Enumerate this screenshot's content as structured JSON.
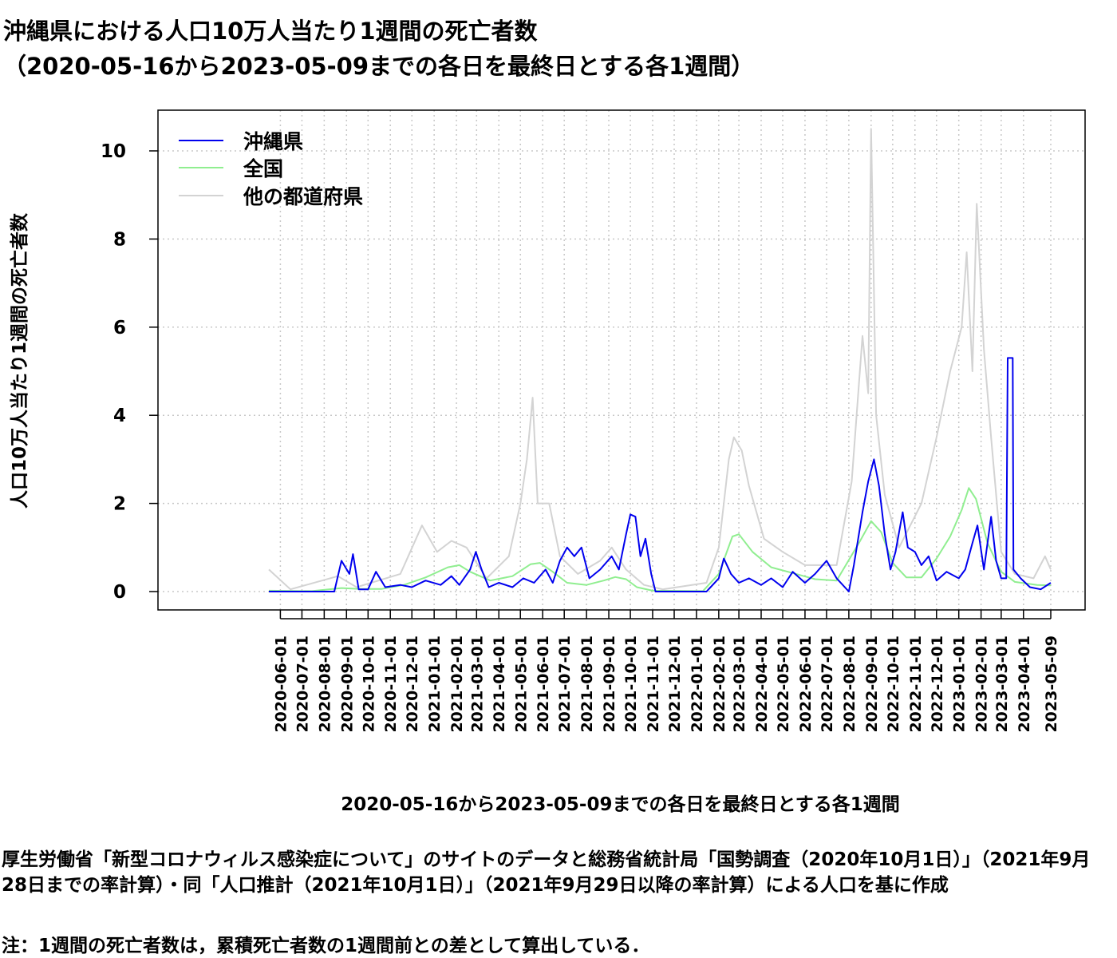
{
  "title": {
    "line1": "沖縄県における人口10万人当たり1週間の死亡者数",
    "line2": "（2020-05-16から2023-05-09までの各日を最終日とする各1週間）"
  },
  "source_text": "厚生労働省「新型コロナウィルス感染症について」のサイトのデータと総務省統計局「国勢調査（2020年10月1日）」（2021年9月28日までの率計算）・同「人口推計（2021年10月1日）」（2021年9月29日以降の率計算）による人口を基に作成",
  "note": "注：1週間の死亡者数は，累積死亡者数の1週間前との差として算出している．",
  "chart_data": {
    "type": "line",
    "xlabel": "2020-05-16から2023-05-09までの各日を最終日とする各1週間",
    "ylabel": "人口10万人当たり1週間の死亡者数",
    "x_range": [
      "2020-05-16",
      "2023-05-09"
    ],
    "ylim": [
      0,
      10.5
    ],
    "y_ticks": [
      0,
      2,
      4,
      6,
      8,
      10
    ],
    "x_ticks": [
      "2020-06-01",
      "2020-07-01",
      "2020-08-01",
      "2020-09-01",
      "2020-10-01",
      "2020-11-01",
      "2020-12-01",
      "2021-01-01",
      "2021-02-01",
      "2021-03-01",
      "2021-04-01",
      "2021-05-01",
      "2021-06-01",
      "2021-07-01",
      "2021-08-01",
      "2021-09-01",
      "2021-10-01",
      "2021-11-01",
      "2021-12-01",
      "2022-01-01",
      "2022-02-01",
      "2022-03-01",
      "2022-04-01",
      "2022-05-01",
      "2022-06-01",
      "2022-07-01",
      "2022-08-01",
      "2022-09-01",
      "2022-10-01",
      "2022-11-01",
      "2022-12-01",
      "2023-01-01",
      "2023-02-01",
      "2023-03-01",
      "2023-04-01",
      "2023-05-09"
    ],
    "grid": true,
    "legend_position": "top-left",
    "series": [
      {
        "name": "沖縄県",
        "color": "#0000ee",
        "points": [
          [
            "2020-05-16",
            0.0
          ],
          [
            "2020-08-15",
            0.0
          ],
          [
            "2020-08-25",
            0.7
          ],
          [
            "2020-09-05",
            0.4
          ],
          [
            "2020-09-10",
            0.85
          ],
          [
            "2020-09-18",
            0.05
          ],
          [
            "2020-10-01",
            0.05
          ],
          [
            "2020-10-12",
            0.45
          ],
          [
            "2020-10-25",
            0.1
          ],
          [
            "2020-11-15",
            0.15
          ],
          [
            "2020-12-01",
            0.1
          ],
          [
            "2020-12-20",
            0.25
          ],
          [
            "2021-01-10",
            0.15
          ],
          [
            "2021-01-25",
            0.35
          ],
          [
            "2021-02-05",
            0.15
          ],
          [
            "2021-02-20",
            0.5
          ],
          [
            "2021-02-28",
            0.9
          ],
          [
            "2021-03-08",
            0.5
          ],
          [
            "2021-03-18",
            0.1
          ],
          [
            "2021-04-01",
            0.2
          ],
          [
            "2021-04-20",
            0.1
          ],
          [
            "2021-05-05",
            0.3
          ],
          [
            "2021-05-20",
            0.2
          ],
          [
            "2021-06-05",
            0.5
          ],
          [
            "2021-06-15",
            0.2
          ],
          [
            "2021-06-25",
            0.7
          ],
          [
            "2021-07-05",
            1.0
          ],
          [
            "2021-07-15",
            0.8
          ],
          [
            "2021-07-25",
            1.0
          ],
          [
            "2021-08-05",
            0.3
          ],
          [
            "2021-08-20",
            0.5
          ],
          [
            "2021-09-05",
            0.8
          ],
          [
            "2021-09-15",
            0.5
          ],
          [
            "2021-09-25",
            1.3
          ],
          [
            "2021-10-01",
            1.75
          ],
          [
            "2021-10-08",
            1.7
          ],
          [
            "2021-10-15",
            0.8
          ],
          [
            "2021-10-22",
            1.2
          ],
          [
            "2021-10-30",
            0.4
          ],
          [
            "2021-11-05",
            0.0
          ],
          [
            "2022-01-15",
            0.0
          ],
          [
            "2022-02-01",
            0.3
          ],
          [
            "2022-02-08",
            0.75
          ],
          [
            "2022-02-18",
            0.4
          ],
          [
            "2022-03-01",
            0.2
          ],
          [
            "2022-03-15",
            0.3
          ],
          [
            "2022-04-01",
            0.15
          ],
          [
            "2022-04-15",
            0.3
          ],
          [
            "2022-05-01",
            0.1
          ],
          [
            "2022-05-15",
            0.45
          ],
          [
            "2022-06-01",
            0.2
          ],
          [
            "2022-06-15",
            0.4
          ],
          [
            "2022-07-01",
            0.7
          ],
          [
            "2022-07-15",
            0.3
          ],
          [
            "2022-08-01",
            0.0
          ],
          [
            "2022-08-08",
            0.6
          ],
          [
            "2022-08-20",
            1.8
          ],
          [
            "2022-08-28",
            2.5
          ],
          [
            "2022-09-05",
            3.0
          ],
          [
            "2022-09-12",
            2.4
          ],
          [
            "2022-09-20",
            1.3
          ],
          [
            "2022-09-28",
            0.5
          ],
          [
            "2022-10-05",
            0.9
          ],
          [
            "2022-10-15",
            1.8
          ],
          [
            "2022-10-22",
            1.0
          ],
          [
            "2022-11-01",
            0.9
          ],
          [
            "2022-11-10",
            0.6
          ],
          [
            "2022-11-20",
            0.8
          ],
          [
            "2022-12-01",
            0.25
          ],
          [
            "2022-12-15",
            0.45
          ],
          [
            "2023-01-01",
            0.3
          ],
          [
            "2023-01-10",
            0.5
          ],
          [
            "2023-01-20",
            1.1
          ],
          [
            "2023-01-27",
            1.5
          ],
          [
            "2023-02-05",
            0.5
          ],
          [
            "2023-02-15",
            1.7
          ],
          [
            "2023-02-22",
            0.7
          ],
          [
            "2023-03-01",
            0.3
          ],
          [
            "2023-03-08",
            0.3
          ],
          [
            "2023-03-10",
            5.3
          ],
          [
            "2023-03-17",
            5.3
          ],
          [
            "2023-03-18",
            0.5
          ],
          [
            "2023-03-28",
            0.3
          ],
          [
            "2023-04-10",
            0.1
          ],
          [
            "2023-04-25",
            0.05
          ],
          [
            "2023-05-09",
            0.2
          ]
        ]
      },
      {
        "name": "全国",
        "color": "#90ee90",
        "points": [
          [
            "2020-05-16",
            0.02
          ],
          [
            "2020-07-15",
            0.01
          ],
          [
            "2020-08-25",
            0.08
          ],
          [
            "2020-09-20",
            0.06
          ],
          [
            "2020-10-20",
            0.06
          ],
          [
            "2020-11-20",
            0.15
          ],
          [
            "2020-12-20",
            0.32
          ],
          [
            "2021-01-20",
            0.55
          ],
          [
            "2021-02-05",
            0.6
          ],
          [
            "2021-02-20",
            0.45
          ],
          [
            "2021-03-20",
            0.25
          ],
          [
            "2021-04-20",
            0.35
          ],
          [
            "2021-05-15",
            0.62
          ],
          [
            "2021-05-28",
            0.65
          ],
          [
            "2021-06-15",
            0.45
          ],
          [
            "2021-07-05",
            0.2
          ],
          [
            "2021-08-01",
            0.15
          ],
          [
            "2021-08-25",
            0.25
          ],
          [
            "2021-09-10",
            0.33
          ],
          [
            "2021-09-25",
            0.28
          ],
          [
            "2021-10-10",
            0.1
          ],
          [
            "2021-11-01",
            0.02
          ],
          [
            "2022-01-10",
            0.01
          ],
          [
            "2022-02-01",
            0.4
          ],
          [
            "2022-02-20",
            1.25
          ],
          [
            "2022-03-01",
            1.3
          ],
          [
            "2022-03-20",
            0.9
          ],
          [
            "2022-04-15",
            0.55
          ],
          [
            "2022-05-15",
            0.42
          ],
          [
            "2022-06-15",
            0.28
          ],
          [
            "2022-07-15",
            0.25
          ],
          [
            "2022-08-15",
            1.1
          ],
          [
            "2022-09-01",
            1.6
          ],
          [
            "2022-09-15",
            1.35
          ],
          [
            "2022-10-01",
            0.65
          ],
          [
            "2022-10-20",
            0.32
          ],
          [
            "2022-11-10",
            0.32
          ],
          [
            "2022-12-01",
            0.75
          ],
          [
            "2022-12-20",
            1.25
          ],
          [
            "2023-01-05",
            1.85
          ],
          [
            "2023-01-15",
            2.35
          ],
          [
            "2023-01-25",
            2.1
          ],
          [
            "2023-02-10",
            1.1
          ],
          [
            "2023-03-01",
            0.45
          ],
          [
            "2023-03-20",
            0.22
          ],
          [
            "2023-04-20",
            0.15
          ],
          [
            "2023-05-09",
            0.14
          ]
        ]
      },
      {
        "name": "他の都道府県",
        "color": "#d3d3d3",
        "points": [
          [
            "2020-05-16",
            0.5
          ],
          [
            "2020-06-15",
            0.05
          ],
          [
            "2020-08-20",
            0.35
          ],
          [
            "2020-09-15",
            0.1
          ],
          [
            "2020-11-15",
            0.4
          ],
          [
            "2020-12-15",
            1.5
          ],
          [
            "2021-01-05",
            0.9
          ],
          [
            "2021-01-25",
            1.15
          ],
          [
            "2021-02-15",
            1.0
          ],
          [
            "2021-03-15",
            0.3
          ],
          [
            "2021-04-15",
            0.8
          ],
          [
            "2021-05-01",
            2.0
          ],
          [
            "2021-05-10",
            3.0
          ],
          [
            "2021-05-18",
            4.4
          ],
          [
            "2021-05-25",
            2.0
          ],
          [
            "2021-06-10",
            2.0
          ],
          [
            "2021-06-25",
            0.8
          ],
          [
            "2021-07-20",
            0.4
          ],
          [
            "2021-08-20",
            0.7
          ],
          [
            "2021-09-05",
            1.0
          ],
          [
            "2021-09-25",
            0.5
          ],
          [
            "2021-10-20",
            0.15
          ],
          [
            "2021-11-15",
            0.05
          ],
          [
            "2022-01-15",
            0.2
          ],
          [
            "2022-02-01",
            1.0
          ],
          [
            "2022-02-15",
            3.0
          ],
          [
            "2022-02-22",
            3.5
          ],
          [
            "2022-03-05",
            3.2
          ],
          [
            "2022-03-15",
            2.4
          ],
          [
            "2022-04-05",
            1.2
          ],
          [
            "2022-05-01",
            0.9
          ],
          [
            "2022-06-01",
            0.6
          ],
          [
            "2022-07-15",
            0.6
          ],
          [
            "2022-08-05",
            2.5
          ],
          [
            "2022-08-20",
            5.8
          ],
          [
            "2022-08-28",
            4.5
          ],
          [
            "2022-09-01",
            10.5
          ],
          [
            "2022-09-08",
            4.0
          ],
          [
            "2022-09-20",
            2.2
          ],
          [
            "2022-10-10",
            1.0
          ],
          [
            "2022-11-10",
            2.0
          ],
          [
            "2022-12-01",
            3.5
          ],
          [
            "2022-12-20",
            5.0
          ],
          [
            "2023-01-05",
            6.0
          ],
          [
            "2023-01-12",
            7.7
          ],
          [
            "2023-01-20",
            5.0
          ],
          [
            "2023-01-26",
            8.8
          ],
          [
            "2023-02-05",
            5.5
          ],
          [
            "2023-02-15",
            3.5
          ],
          [
            "2023-03-01",
            0.9
          ],
          [
            "2023-03-20",
            0.4
          ],
          [
            "2023-04-15",
            0.3
          ],
          [
            "2023-05-01",
            0.8
          ],
          [
            "2023-05-09",
            0.5
          ]
        ]
      }
    ]
  }
}
